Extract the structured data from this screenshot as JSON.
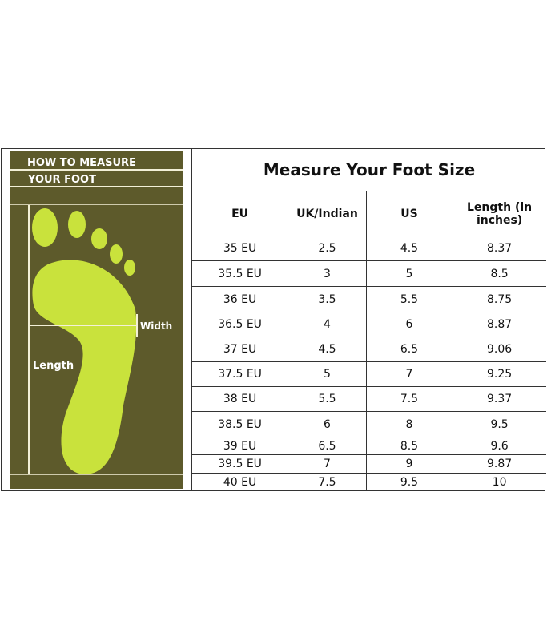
{
  "panel": {
    "heading_line1": "HOW TO MEASURE",
    "heading_line2": "YOUR FOOT",
    "width_label": "Width",
    "length_label": "Length",
    "colors": {
      "background": "#5d5a2b",
      "foot": "#c9e23c",
      "lines": "#f3f0d8"
    }
  },
  "table": {
    "title": "Measure Your Foot Size",
    "headers": [
      "EU",
      "UK/Indian",
      "US",
      "Length (in inches)"
    ],
    "rows": [
      [
        "35 EU",
        "2.5",
        "4.5",
        "8.37"
      ],
      [
        "35.5 EU",
        "3",
        "5",
        "8.5"
      ],
      [
        "36 EU",
        "3.5",
        "5.5",
        "8.75"
      ],
      [
        "36.5 EU",
        "4",
        "6",
        "8.87"
      ],
      [
        "37 EU",
        "4.5",
        "6.5",
        "9.06"
      ],
      [
        "37.5 EU",
        "5",
        "7",
        "9.25"
      ],
      [
        "38 EU",
        "5.5",
        "7.5",
        "9.37"
      ],
      [
        "38.5 EU",
        "6",
        "8",
        "9.5"
      ],
      [
        "39 EU",
        "6.5",
        "8.5",
        "9.6"
      ],
      [
        "39.5 EU",
        "7",
        "9",
        "9.87"
      ],
      [
        "40 EU",
        "7.5",
        "9.5",
        "10"
      ]
    ]
  }
}
